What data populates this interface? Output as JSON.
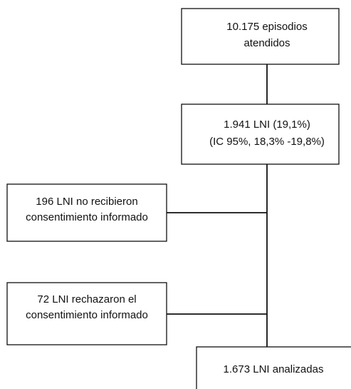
{
  "nodes": [
    {
      "lines": [
        "10.175 episodios",
        "atendidos"
      ]
    },
    {
      "lines": [
        "1.941 LNI (19,1%)",
        "(IC 95%, 18,3% -19,8%)"
      ]
    },
    {
      "lines": [
        "196 LNI no recibieron",
        "consentimiento informado"
      ]
    },
    {
      "lines": [
        "72 LNI rechazaron el",
        "consentimiento informado"
      ]
    },
    {
      "lines": [
        "1.673 LNI analizadas"
      ]
    }
  ]
}
